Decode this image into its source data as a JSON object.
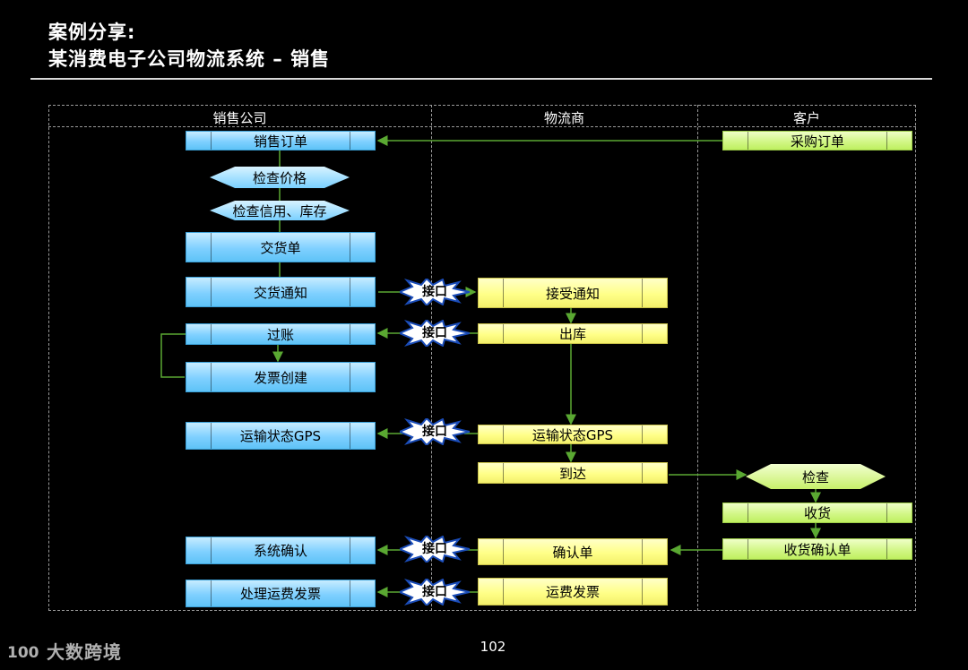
{
  "header": {
    "line1": "案例分享:",
    "line2": "某消费电子公司物流系统 – 销售"
  },
  "lanes": [
    {
      "label": "销售公司"
    },
    {
      "label": "物流商"
    },
    {
      "label": "客户"
    }
  ],
  "sales": {
    "order": "销售订单",
    "check_price": "检查价格",
    "check_credit": "检查信用、库存",
    "delivery_note": "交货单",
    "delivery_notice": "交货通知",
    "posting": "过账",
    "invoice_create": "发票创建",
    "gps_status": "运输状态GPS",
    "system_confirm": "系统确认",
    "freight_invoice": "处理运费发票"
  },
  "logistics": {
    "accept_notice": "接受通知",
    "outbound": "出库",
    "gps_status": "运输状态GPS",
    "arrival": "到达",
    "confirm_doc": "确认单",
    "freight_invoice": "运费发票"
  },
  "customer": {
    "purchase_order": "采购订单",
    "inspect": "检查",
    "receive": "收货",
    "receipt_confirm": "收货确认单"
  },
  "interface_label": "接口",
  "footer": {
    "page_number": "102",
    "brand": "大数跨境",
    "brand_mark": "100"
  },
  "colors": {
    "sales_box": "#7fd0ff",
    "logistics_box": "#ffff88",
    "customer_box": "#d2f788",
    "connector": "#5aa832"
  }
}
